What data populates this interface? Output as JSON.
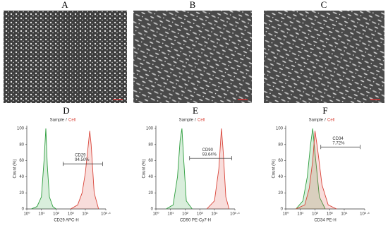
{
  "images": [
    {
      "label": "A"
    },
    {
      "label": "B"
    },
    {
      "label": "C"
    }
  ],
  "chart_data": [
    {
      "type": "histogram",
      "title": "D",
      "legend_separator": "/",
      "x_label": "CD29 APC-H",
      "y_label": "Count (%)",
      "log_x": true,
      "xlim": [
        1,
        251189
      ],
      "xticks": [
        {
          "value": 1,
          "label": "10⁰"
        },
        {
          "value": 10,
          "label": "10¹"
        },
        {
          "value": 100,
          "label": "10²"
        },
        {
          "value": 1000,
          "label": "10³"
        },
        {
          "value": 10000,
          "label": "10⁴"
        },
        {
          "value": 251189,
          "label": "10⁵·⁴"
        }
      ],
      "ylim": [
        0,
        100
      ],
      "yticks": [
        0,
        20,
        40,
        60,
        80,
        100
      ],
      "series": [
        {
          "name": "Sample",
          "color": "#2e9e3e",
          "x": [
            2,
            5,
            10,
            15,
            20,
            25,
            35,
            60,
            100
          ],
          "values": [
            0,
            3,
            15,
            60,
            100,
            55,
            15,
            3,
            0
          ]
        },
        {
          "name": "Cell",
          "color": "#d9453a",
          "x": [
            1000,
            3000,
            6000,
            10000,
            15000,
            20000,
            25000,
            40000,
            80000
          ],
          "values": [
            0,
            5,
            20,
            45,
            75,
            97,
            80,
            20,
            0
          ]
        }
      ],
      "gate": {
        "name": "CD29",
        "percent_label": "94.50%",
        "range": [
          300,
          150000
        ],
        "y": 56
      }
    },
    {
      "type": "histogram",
      "title": "E",
      "legend_separator": "/",
      "x_label": "CD90 PE-Cy7-H",
      "y_label": "Count (%)",
      "log_x": true,
      "xlim": [
        1,
        251189
      ],
      "xticks": [
        {
          "value": 1,
          "label": "10⁰"
        },
        {
          "value": 10,
          "label": "10¹"
        },
        {
          "value": 100,
          "label": "10²"
        },
        {
          "value": 1000,
          "label": "10³"
        },
        {
          "value": 10000,
          "label": "10⁴"
        },
        {
          "value": 251189,
          "label": "10⁵·⁴"
        }
      ],
      "ylim": [
        0,
        100
      ],
      "yticks": [
        0,
        20,
        40,
        60,
        80,
        100
      ],
      "series": [
        {
          "name": "Sample",
          "color": "#2e9e3e",
          "x": [
            5,
            15,
            30,
            45,
            60,
            80,
            120,
            300
          ],
          "values": [
            0,
            5,
            40,
            85,
            100,
            60,
            10,
            0
          ]
        },
        {
          "name": "Cell",
          "color": "#d9453a",
          "x": [
            3000,
            10000,
            20000,
            30000,
            40000,
            60000,
            100000
          ],
          "values": [
            0,
            10,
            50,
            100,
            70,
            15,
            0
          ]
        }
      ],
      "gate": {
        "name": "CD90",
        "percent_label": "93.64%",
        "range": [
          200,
          150000
        ],
        "y": 63
      }
    },
    {
      "type": "histogram",
      "title": "F",
      "legend_separator": "/",
      "x_label": "CD34 PE-H",
      "y_label": "Count (%)",
      "log_x": true,
      "xlim": [
        1,
        251189
      ],
      "xticks": [
        {
          "value": 1,
          "label": "10⁰"
        },
        {
          "value": 10,
          "label": "10¹"
        },
        {
          "value": 100,
          "label": "10²"
        },
        {
          "value": 1000,
          "label": "10³"
        },
        {
          "value": 10000,
          "label": "10⁴"
        },
        {
          "value": 251189,
          "label": "10⁵·⁴"
        }
      ],
      "ylim": [
        0,
        100
      ],
      "yticks": [
        0,
        20,
        40,
        60,
        80,
        100
      ],
      "series": [
        {
          "name": "Sample",
          "color": "#2e9e3e",
          "x": [
            5,
            15,
            30,
            50,
            70,
            100,
            200,
            500
          ],
          "values": [
            0,
            10,
            40,
            80,
            100,
            70,
            15,
            0
          ]
        },
        {
          "name": "Cell",
          "color": "#d9453a",
          "x": [
            5,
            20,
            40,
            70,
            100,
            150,
            300,
            800,
            3000
          ],
          "values": [
            0,
            5,
            25,
            60,
            97,
            75,
            30,
            5,
            0
          ]
        }
      ],
      "gate": {
        "name": "CD34",
        "percent_label": "7.72%",
        "range": [
          250,
          120000
        ],
        "y": 77
      }
    }
  ]
}
